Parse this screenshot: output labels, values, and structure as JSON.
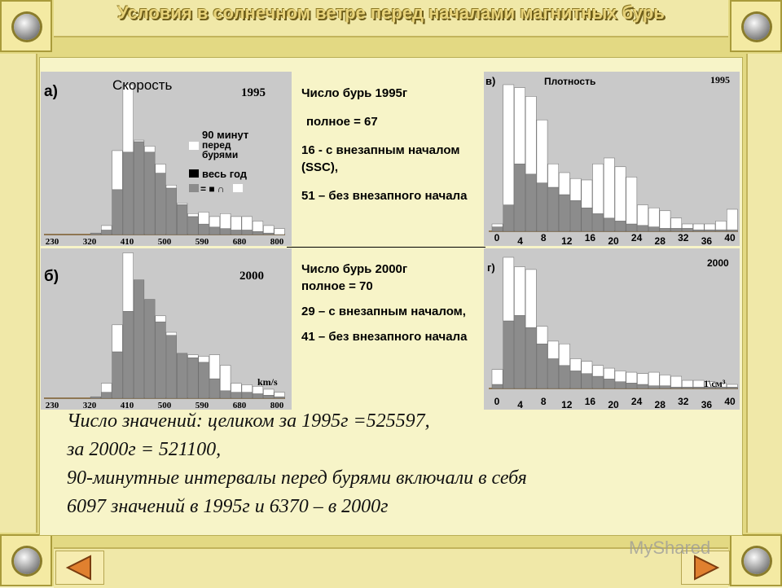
{
  "slide": {
    "title": "Условия в солнечном ветре перед началами магнитных бурь"
  },
  "mid_top": {
    "line1": "Число бурь 1995г",
    "line2": "полное = 67",
    "line3": "16 - с внезапным началом (SSC),",
    "line4": "51 – без внезапного начала"
  },
  "mid_bottom": {
    "line1": "Число бурь 2000г",
    "line2": "полное = 70",
    "line3": "29 – с внезапным началом,",
    "line4": "41 – без внезапного начала"
  },
  "summary": {
    "line1": "Число значений: целиком за 1995г =525597,",
    "line2": "за 2000г = 521100,",
    "line3": "90-минутные  интервалы перед бурями включали в себя",
    "line4": "6097 значений в 1995г и 6370 – в 2000г"
  },
  "watermark": "MyShared",
  "colors": {
    "frame": "#e3d983",
    "chart_bg": "#c9c9c9",
    "gray_bar": "#8c8c8c",
    "black_bar": "#000000",
    "white_bar": "#ffffff"
  },
  "chart_data": [
    {
      "id": "a",
      "type": "bar",
      "panel_label": "а)",
      "title": "Скорость",
      "year": "1995",
      "unit": "",
      "x_ticks": [
        "230",
        "320",
        "410",
        "500",
        "590",
        "680",
        "800"
      ],
      "legend": [
        "90 минут перед бурями",
        "весь год",
        "= ■ ∩"
      ],
      "series": [
        {
          "name": "весь год",
          "values": [
            0,
            0,
            0,
            0,
            1,
            3,
            30,
            55,
            62,
            55,
            41,
            31,
            20,
            12,
            7,
            5,
            4,
            3,
            3,
            2,
            1,
            0
          ]
        },
        {
          "name": "90 минут перед бурями",
          "values": [
            0,
            0,
            0,
            0,
            1,
            6,
            56,
            100,
            63,
            59,
            47,
            33,
            21,
            14,
            15,
            12,
            14,
            12,
            12,
            9,
            6,
            4
          ]
        }
      ]
    },
    {
      "id": "b",
      "type": "bar",
      "panel_label": "б)",
      "title": "",
      "year": "2000",
      "unit": "km/s",
      "x_ticks": [
        "230",
        "320",
        "410",
        "500",
        "590",
        "680",
        "800"
      ],
      "series": [
        {
          "name": "весь год",
          "values": [
            0,
            0,
            0,
            0,
            1,
            4,
            31,
            58,
            79,
            66,
            51,
            42,
            30,
            27,
            24,
            13,
            5,
            4,
            4,
            3,
            2,
            1
          ]
        },
        {
          "name": "90 минут перед бурями",
          "values": [
            0,
            0,
            0,
            0,
            1,
            10,
            49,
            97,
            79,
            66,
            55,
            44,
            30,
            29,
            28,
            29,
            22,
            10,
            9,
            8,
            6,
            4
          ]
        }
      ]
    },
    {
      "id": "c",
      "type": "bar",
      "panel_label": "в)",
      "title": "Плотность",
      "year": "1995",
      "unit": "",
      "x_ticks": [
        "0",
        "4",
        "8",
        "12",
        "16",
        "20",
        "24",
        "28",
        "32",
        "36",
        "40"
      ],
      "series": [
        {
          "name": "весь год",
          "values": [
            3,
            18,
            46,
            39,
            33,
            30,
            25,
            21,
            16,
            12,
            9,
            7,
            5,
            4,
            3,
            2,
            2,
            2,
            1,
            1,
            1,
            1
          ]
        },
        {
          "name": "90 минут перед бурями",
          "values": [
            5,
            100,
            98,
            92,
            76,
            46,
            40,
            36,
            35,
            46,
            50,
            44,
            37,
            18,
            16,
            14,
            9,
            5,
            5,
            5,
            7,
            15
          ]
        }
      ]
    },
    {
      "id": "d",
      "type": "bar",
      "panel_label": "г)",
      "title": "",
      "year": "2000",
      "unit": "1\\см³",
      "x_ticks": [
        "0",
        "4",
        "8",
        "12",
        "16",
        "20",
        "24",
        "28",
        "32",
        "36",
        "40"
      ],
      "series": [
        {
          "name": "весь год",
          "values": [
            3,
            50,
            54,
            45,
            33,
            22,
            17,
            13,
            11,
            9,
            7,
            5,
            4,
            3,
            2,
            2,
            1,
            1,
            1,
            1,
            1,
            1
          ]
        },
        {
          "name": "90 минут перед бурями",
          "values": [
            14,
            97,
            90,
            88,
            46,
            35,
            33,
            22,
            20,
            17,
            15,
            13,
            12,
            11,
            12,
            10,
            9,
            6,
            6,
            5,
            4,
            3
          ]
        }
      ]
    }
  ]
}
